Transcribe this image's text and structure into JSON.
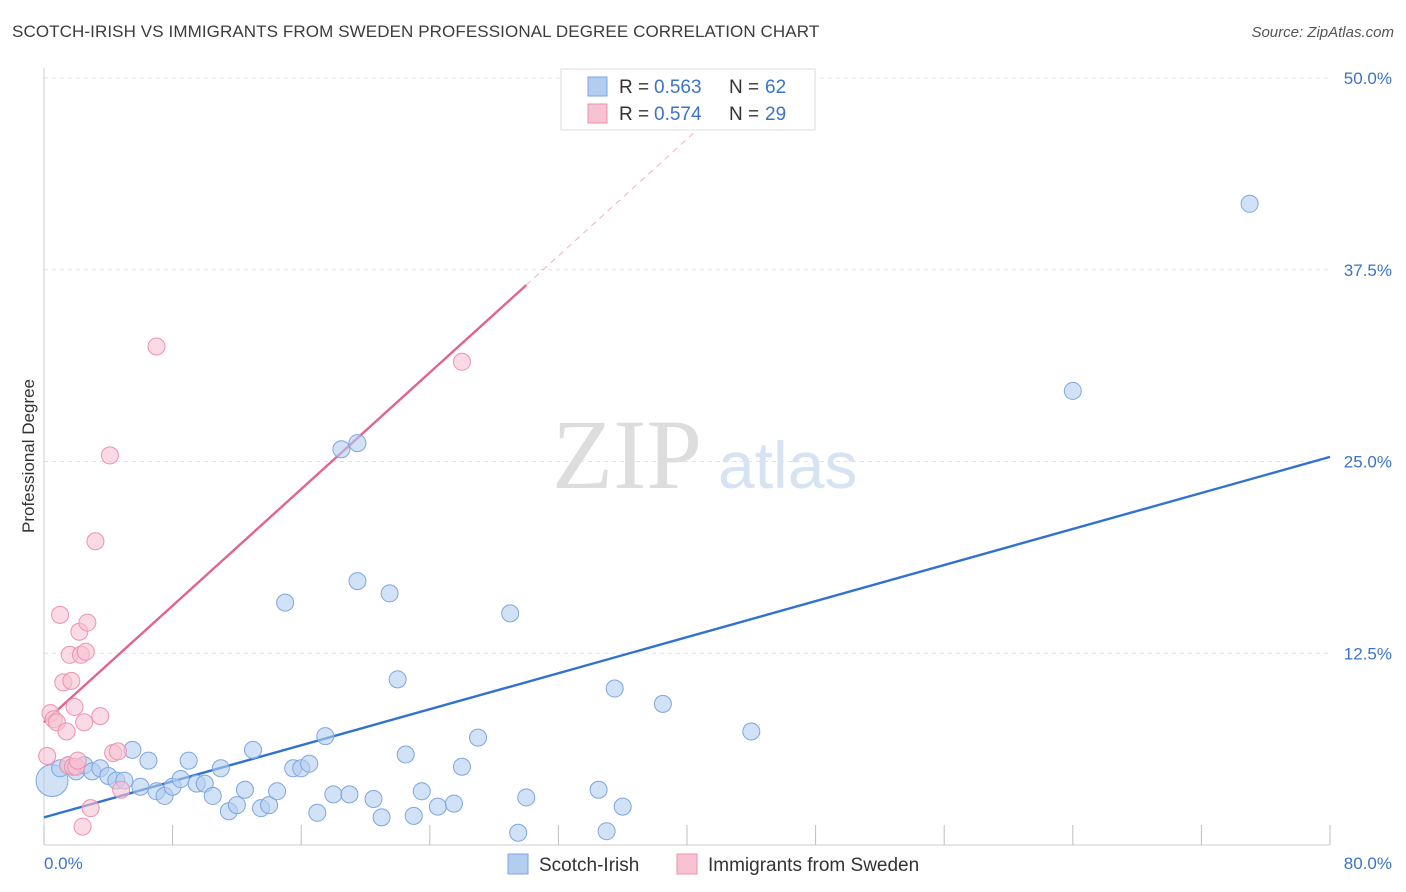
{
  "title": "SCOTCH-IRISH VS IMMIGRANTS FROM SWEDEN PROFESSIONAL DEGREE CORRELATION CHART",
  "source": "Source: ZipAtlas.com",
  "watermark": {
    "left": "ZIP",
    "right": "atlas"
  },
  "colors": {
    "blue_fill": "#b3cdf0",
    "blue_stroke": "#7ea6e0",
    "blue_line": "#2f72d0",
    "pink_fill": "#f7c2d2",
    "pink_stroke": "#ee92ae",
    "pink_line": "#e0648e",
    "grid": "#e2e2e2",
    "tick_text": "#3b74c7"
  },
  "legend": {
    "rows": [
      {
        "r_label": "R =",
        "r_value": "0.563",
        "n_label": "N =",
        "n_value": "62"
      },
      {
        "r_label": "R =",
        "r_value": "0.574",
        "n_label": "N =",
        "n_value": "29"
      }
    ]
  },
  "chart_data": {
    "type": "scatter",
    "title": "SCOTCH-IRISH VS IMMIGRANTS FROM SWEDEN PROFESSIONAL DEGREE CORRELATION CHART",
    "xlabel": "",
    "ylabel": "Professional Degree",
    "xlim": [
      0,
      80
    ],
    "ylim": [
      0,
      50
    ],
    "x_tick_labels": [
      "0.0%",
      "80.0%"
    ],
    "y_ticks": [
      12.5,
      25.0,
      37.5,
      50.0
    ],
    "y_tick_labels": [
      "12.5%",
      "25.0%",
      "37.5%",
      "50.0%"
    ],
    "grid": true,
    "legend_position": "top-center",
    "series": [
      {
        "name": "Scotch-Irish",
        "color": "#b3cdf0",
        "r": 0.563,
        "n": 62,
        "trend": {
          "x": [
            0,
            80
          ],
          "y": [
            1.8,
            25.3
          ]
        },
        "points": [
          [
            0.5,
            4.2
          ],
          [
            1.0,
            5.0
          ],
          [
            1.5,
            5.2
          ],
          [
            2.0,
            4.8
          ],
          [
            2.5,
            5.2
          ],
          [
            3.0,
            4.8
          ],
          [
            3.5,
            5.0
          ],
          [
            4.0,
            4.5
          ],
          [
            4.5,
            4.2
          ],
          [
            5.0,
            4.2
          ],
          [
            5.5,
            6.2
          ],
          [
            6.0,
            3.8
          ],
          [
            6.5,
            5.5
          ],
          [
            7.0,
            3.5
          ],
          [
            7.5,
            3.2
          ],
          [
            8.0,
            3.8
          ],
          [
            8.5,
            4.3
          ],
          [
            9.0,
            5.5
          ],
          [
            9.5,
            4.0
          ],
          [
            10.0,
            4.0
          ],
          [
            10.5,
            3.2
          ],
          [
            11.0,
            5.0
          ],
          [
            11.5,
            2.2
          ],
          [
            12.0,
            2.6
          ],
          [
            12.5,
            3.6
          ],
          [
            13.0,
            6.2
          ],
          [
            13.5,
            2.4
          ],
          [
            14.0,
            2.6
          ],
          [
            14.5,
            3.5
          ],
          [
            15.0,
            15.8
          ],
          [
            15.5,
            5.0
          ],
          [
            16.0,
            5.0
          ],
          [
            16.5,
            5.3
          ],
          [
            17.0,
            2.1
          ],
          [
            17.5,
            7.1
          ],
          [
            18.0,
            3.3
          ],
          [
            18.5,
            25.8
          ],
          [
            19.0,
            3.3
          ],
          [
            19.5,
            17.2
          ],
          [
            19.5,
            26.2
          ],
          [
            20.5,
            3.0
          ],
          [
            21.0,
            1.8
          ],
          [
            21.5,
            16.4
          ],
          [
            22.0,
            10.8
          ],
          [
            22.5,
            5.9
          ],
          [
            23.0,
            1.9
          ],
          [
            23.5,
            3.5
          ],
          [
            24.5,
            2.5
          ],
          [
            25.5,
            2.7
          ],
          [
            26.0,
            5.1
          ],
          [
            27.0,
            7.0
          ],
          [
            29.0,
            15.1
          ],
          [
            29.5,
            0.8
          ],
          [
            30.0,
            3.1
          ],
          [
            34.5,
            3.6
          ],
          [
            35.0,
            0.9
          ],
          [
            35.5,
            10.2
          ],
          [
            36.0,
            2.5
          ],
          [
            38.5,
            9.2
          ],
          [
            44.0,
            7.4
          ],
          [
            64.0,
            29.6
          ],
          [
            75.0,
            41.8
          ]
        ]
      },
      {
        "name": "Immigrants from Sweden",
        "color": "#f7c2d2",
        "r": 0.574,
        "n": 29,
        "trend": {
          "x": [
            0,
            30
          ],
          "y": [
            8.0,
            36.5
          ]
        },
        "trend_extension": {
          "x": [
            30,
            42.5
          ],
          "y": [
            36.5,
            48.4
          ]
        },
        "points": [
          [
            0.2,
            5.8
          ],
          [
            0.4,
            8.6
          ],
          [
            0.6,
            8.2
          ],
          [
            0.8,
            8.0
          ],
          [
            1.0,
            15.0
          ],
          [
            1.2,
            10.6
          ],
          [
            1.4,
            7.4
          ],
          [
            1.5,
            5.2
          ],
          [
            1.6,
            12.4
          ],
          [
            1.7,
            10.7
          ],
          [
            1.8,
            5.1
          ],
          [
            1.9,
            9.0
          ],
          [
            2.0,
            5.1
          ],
          [
            2.1,
            5.5
          ],
          [
            2.2,
            13.9
          ],
          [
            2.3,
            12.4
          ],
          [
            2.4,
            1.2
          ],
          [
            2.5,
            8.0
          ],
          [
            2.6,
            12.6
          ],
          [
            2.7,
            14.5
          ],
          [
            2.9,
            2.4
          ],
          [
            3.2,
            19.8
          ],
          [
            3.5,
            8.4
          ],
          [
            4.1,
            25.4
          ],
          [
            4.3,
            6.0
          ],
          [
            4.6,
            6.1
          ],
          [
            4.8,
            3.6
          ],
          [
            7.0,
            32.5
          ],
          [
            26.0,
            31.5
          ]
        ]
      }
    ]
  }
}
